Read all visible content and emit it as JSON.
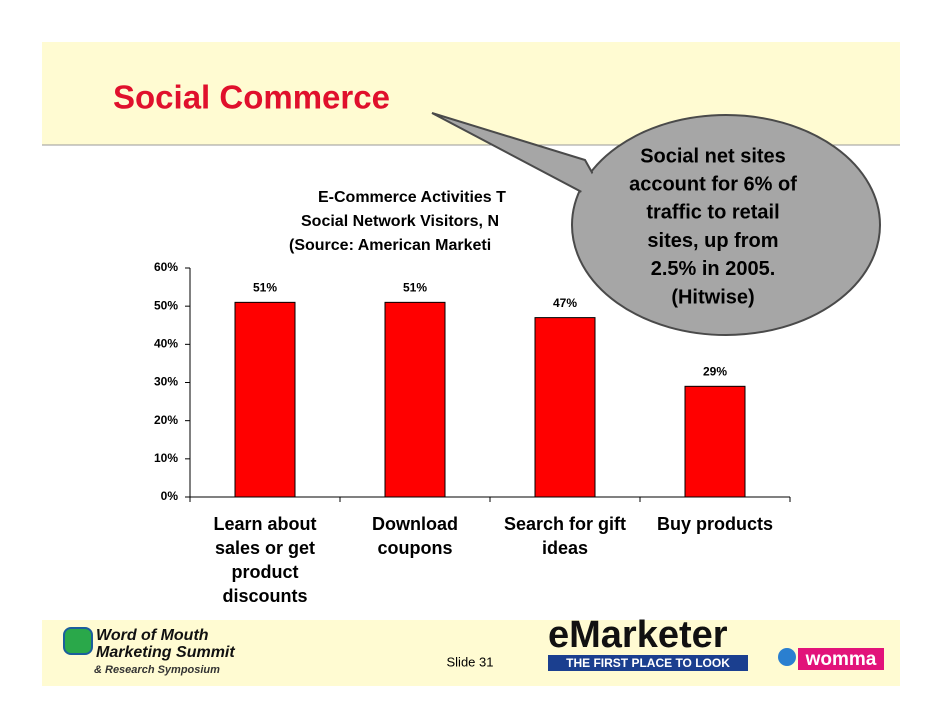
{
  "header": {
    "title": "Social Commerce"
  },
  "chart_data": {
    "type": "bar",
    "title_lines": [
      "E-Commerce Activities T",
      "Social Network Visitors, N",
      "(Source: American Marketi"
    ],
    "categories": [
      "Learn about sales or get product discounts",
      "Download coupons",
      "Search for gift ideas",
      "Buy products"
    ],
    "values": [
      51,
      51,
      47,
      29
    ],
    "value_labels": [
      "51%",
      "51%",
      "47%",
      "29%"
    ],
    "color": "#ff0000",
    "ylim": [
      0,
      60
    ],
    "yticks": [
      {
        "value": 0,
        "label": "0%"
      },
      {
        "value": 10,
        "label": "10%"
      },
      {
        "value": 20,
        "label": "20%"
      },
      {
        "value": 30,
        "label": "30%"
      },
      {
        "value": 40,
        "label": "40%"
      },
      {
        "value": 50,
        "label": "50%"
      },
      {
        "value": 60,
        "label": "60%"
      }
    ],
    "grid": false
  },
  "callout": {
    "lines": [
      "Social net sites",
      "account for 6% of",
      "traffic to retail",
      "sites, up from",
      "2.5% in 2005.",
      "(Hitwise)"
    ]
  },
  "footer": {
    "slide": "Slide 31",
    "womms_lines": [
      "Word of Mouth",
      "Marketing Summit",
      "& Research Symposium"
    ],
    "emarketer": "eMarketer",
    "emarketer_tagline": "THE FIRST PLACE TO LOOK",
    "womma": "womma"
  }
}
